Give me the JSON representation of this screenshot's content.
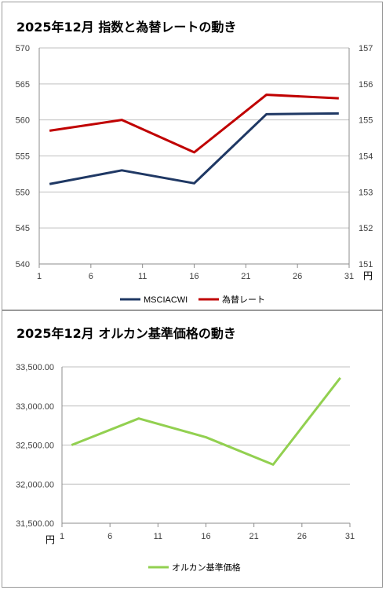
{
  "chart_data": [
    {
      "type": "line",
      "title": "2025年12月 指数と為替レートの動き",
      "x": [
        2,
        9,
        16,
        23,
        30
      ],
      "x_ticks": [
        "1",
        "6",
        "11",
        "16",
        "21",
        "26",
        "31"
      ],
      "x_unit": "円",
      "xlim": [
        1,
        31
      ],
      "y_left": {
        "ylim": [
          540,
          570
        ],
        "ticks": [
          "540",
          "545",
          "550",
          "555",
          "560",
          "565",
          "570"
        ]
      },
      "y_right": {
        "ylim": [
          151,
          157
        ],
        "ticks": [
          "151",
          "152",
          "153",
          "154",
          "155",
          "156",
          "157"
        ]
      },
      "grid": true,
      "legend_position": "bottom",
      "series": [
        {
          "name": "MSCIACWI",
          "axis": "left",
          "color": "#1f3864",
          "values": [
            551.1,
            553.0,
            551.2,
            560.8,
            560.9
          ]
        },
        {
          "name": "為替レート",
          "axis": "right",
          "color": "#c00000",
          "values": [
            154.7,
            155.0,
            154.1,
            155.7,
            155.6
          ]
        }
      ]
    },
    {
      "type": "line",
      "title": "2025年12月 オルカン基準価格の動き",
      "x": [
        2,
        9,
        16,
        23,
        30
      ],
      "x_ticks": [
        "1",
        "6",
        "11",
        "16",
        "21",
        "26",
        "31"
      ],
      "y_unit": "円",
      "xlim": [
        1,
        31
      ],
      "ylim": [
        31500,
        33500
      ],
      "y_ticks": [
        "31,500.00",
        "32,000.00",
        "32,500.00",
        "33,000.00",
        "33,500.00"
      ],
      "grid": true,
      "legend_position": "bottom",
      "series": [
        {
          "name": "オルカン基準価格",
          "color": "#92d050",
          "values": [
            32500,
            32840,
            32600,
            32250,
            33360
          ]
        }
      ]
    }
  ]
}
